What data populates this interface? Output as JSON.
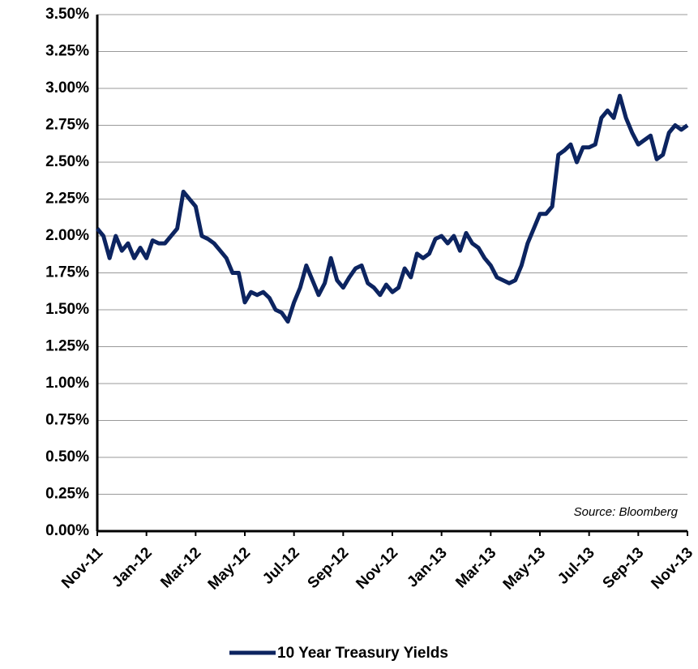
{
  "chart_data": {
    "type": "line",
    "categories": [
      "Nov-11",
      null,
      null,
      null,
      null,
      null,
      null,
      null,
      "Jan-12",
      null,
      null,
      null,
      null,
      null,
      null,
      null,
      "Mar-12",
      null,
      null,
      null,
      null,
      null,
      null,
      null,
      "May-12",
      null,
      null,
      null,
      null,
      null,
      null,
      null,
      "Jul-12",
      null,
      null,
      null,
      null,
      null,
      null,
      null,
      "Sep-12",
      null,
      null,
      null,
      null,
      null,
      null,
      null,
      "Nov-12",
      null,
      null,
      null,
      null,
      null,
      null,
      null,
      "Jan-13",
      null,
      null,
      null,
      null,
      null,
      null,
      null,
      "Mar-13",
      null,
      null,
      null,
      null,
      null,
      null,
      null,
      "May-13",
      null,
      null,
      null,
      null,
      null,
      null,
      null,
      "Jul-13",
      null,
      null,
      null,
      null,
      null,
      null,
      null,
      "Sep-13",
      null,
      null,
      null,
      null,
      null,
      null,
      null,
      "Nov-13"
    ],
    "series": [
      {
        "name": "10 Year Treasury Yields",
        "color": "#0c2460",
        "values": [
          2.05,
          2.0,
          1.85,
          2.0,
          1.9,
          1.95,
          1.85,
          1.92,
          1.85,
          1.97,
          1.95,
          1.95,
          2.0,
          2.05,
          2.3,
          2.25,
          2.2,
          2.0,
          1.98,
          1.95,
          1.9,
          1.85,
          1.75,
          1.75,
          1.55,
          1.62,
          1.6,
          1.62,
          1.58,
          1.5,
          1.48,
          1.42,
          1.55,
          1.65,
          1.8,
          1.7,
          1.6,
          1.68,
          1.85,
          1.7,
          1.65,
          1.72,
          1.78,
          1.8,
          1.68,
          1.65,
          1.6,
          1.67,
          1.62,
          1.65,
          1.78,
          1.72,
          1.88,
          1.85,
          1.88,
          1.98,
          2.0,
          1.95,
          2.0,
          1.9,
          2.02,
          1.95,
          1.92,
          1.85,
          1.8,
          1.72,
          1.7,
          1.68,
          1.7,
          1.8,
          1.95,
          2.05,
          2.15,
          2.15,
          2.2,
          2.55,
          2.58,
          2.62,
          2.5,
          2.6,
          2.6,
          2.62,
          2.8,
          2.85,
          2.8,
          2.95,
          2.8,
          2.7,
          2.62,
          2.65,
          2.68,
          2.52,
          2.55,
          2.7,
          2.75,
          2.72,
          2.75
        ]
      }
    ],
    "ylim": [
      0,
      3.5
    ],
    "yticks": [
      {
        "value": 0,
        "label": "0.00%"
      },
      {
        "value": 0.25,
        "label": "0.25%"
      },
      {
        "value": 0.5,
        "label": "0.50%"
      },
      {
        "value": 0.75,
        "label": "0.75%"
      },
      {
        "value": 1,
        "label": "1.00%"
      },
      {
        "value": 1.25,
        "label": "1.25%"
      },
      {
        "value": 1.5,
        "label": "1.50%"
      },
      {
        "value": 1.75,
        "label": "1.75%"
      },
      {
        "value": 2,
        "label": "2.00%"
      },
      {
        "value": 2.25,
        "label": "2.25%"
      },
      {
        "value": 2.5,
        "label": "2.50%"
      },
      {
        "value": 2.75,
        "label": "2.75%"
      },
      {
        "value": 3,
        "label": "3.00%"
      },
      {
        "value": 3.25,
        "label": "3.25%"
      },
      {
        "value": 3.5,
        "label": "3.50%"
      }
    ],
    "grid": true,
    "annotation": "Source: Bloomberg",
    "legend": "bottom"
  }
}
